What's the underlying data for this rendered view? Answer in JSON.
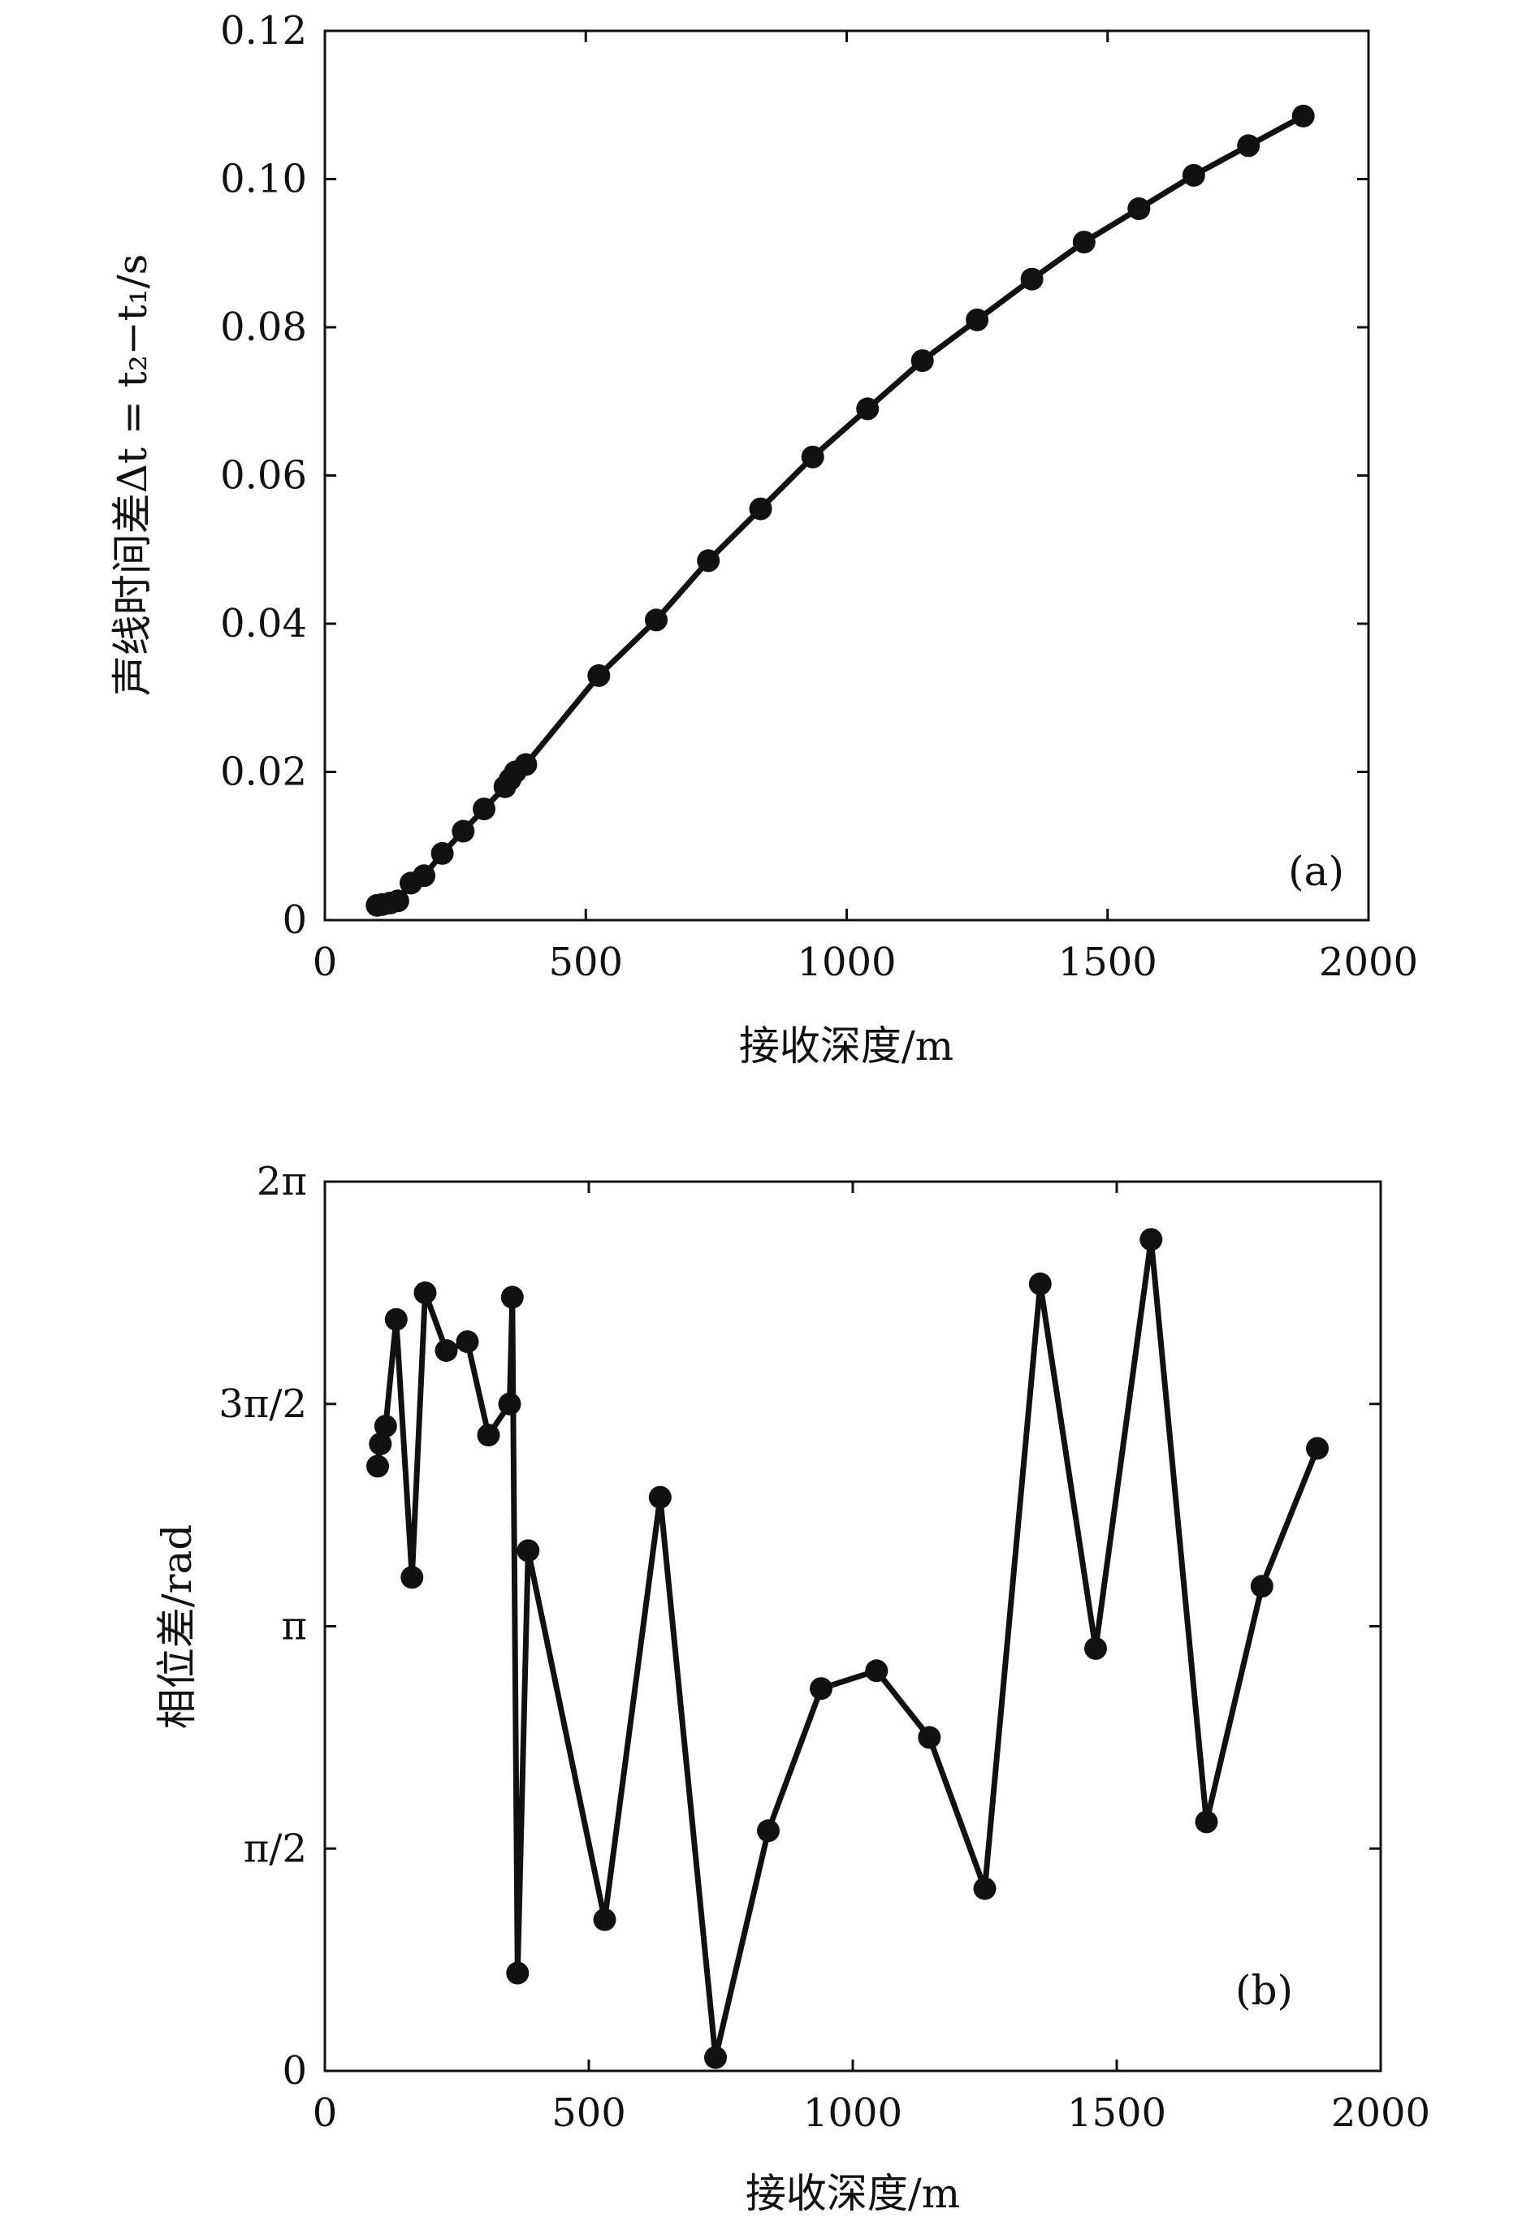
{
  "chart_data": [
    {
      "type": "line",
      "panel_label": "(a)",
      "xlabel": "接收深度/m",
      "ylabel": "声线时间差Δt = t₂−t₁/s",
      "xlim": [
        0,
        2000
      ],
      "ylim": [
        0,
        0.12
      ],
      "x_ticks": [
        "0",
        "500",
        "1000",
        "1500",
        "2000"
      ],
      "y_ticks": [
        "0",
        "0.02",
        "0.04",
        "0.06",
        "0.08",
        "0.10",
        "0.12"
      ],
      "series": [
        {
          "marker": "circle",
          "x": [
            100,
            110,
            125,
            140,
            165,
            190,
            225,
            265,
            305,
            345,
            355,
            365,
            385,
            525,
            635,
            735,
            835,
            935,
            1040,
            1145,
            1250,
            1355,
            1455,
            1560,
            1665,
            1770,
            1875
          ],
          "y": [
            0.002,
            0.0021,
            0.0023,
            0.0026,
            0.005,
            0.006,
            0.009,
            0.012,
            0.015,
            0.018,
            0.019,
            0.02,
            0.021,
            0.033,
            0.0405,
            0.0485,
            0.0555,
            0.0625,
            0.069,
            0.0755,
            0.081,
            0.0865,
            0.0915,
            0.096,
            0.1005,
            0.1045,
            0.1085
          ]
        }
      ]
    },
    {
      "type": "line",
      "panel_label": "(b)",
      "xlabel": "接收深度/m",
      "ylabel": "相位差/rad",
      "xlim": [
        0,
        2000
      ],
      "ylim_in_pi": [
        0,
        2
      ],
      "x_ticks": [
        "0",
        "500",
        "1000",
        "1500",
        "2000"
      ],
      "y_ticks": [
        "0",
        "π/2",
        "π",
        "3π/2",
        "2π"
      ],
      "series": [
        {
          "marker": "circle",
          "y_unit": "multiples of π",
          "x": [
            100,
            105,
            115,
            135,
            165,
            190,
            230,
            270,
            310,
            350,
            355,
            365,
            385,
            530,
            635,
            740,
            840,
            940,
            1045,
            1145,
            1250,
            1355,
            1460,
            1565,
            1670,
            1775,
            1880
          ],
          "y": [
            1.36,
            1.41,
            1.45,
            1.69,
            1.11,
            1.75,
            1.62,
            1.64,
            1.43,
            1.5,
            1.74,
            0.22,
            1.17,
            0.34,
            1.29,
            0.03,
            0.54,
            0.86,
            0.9,
            0.75,
            0.41,
            1.77,
            0.95,
            1.87,
            0.56,
            1.09,
            1.4
          ]
        }
      ]
    }
  ]
}
